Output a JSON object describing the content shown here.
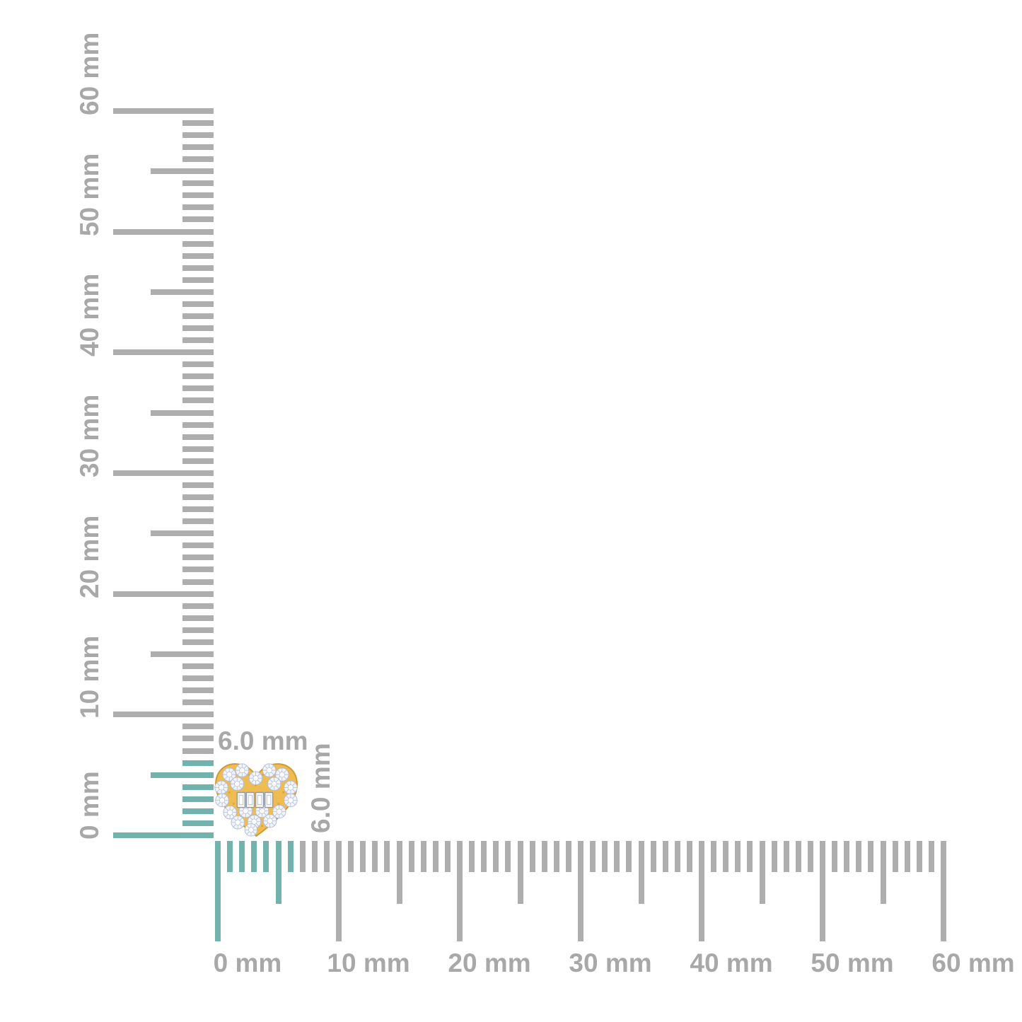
{
  "page": {
    "background": "#ffffff"
  },
  "item": {
    "name": "heart-shaped diamond cluster stud in yellow gold",
    "width_label": "6.0 mm",
    "height_label": "6.0 mm"
  },
  "vertical_ruler": {
    "unit": "mm",
    "min_mm": 0,
    "max_mm": 60,
    "minor_step_mm": 1,
    "medium_step_mm": 5,
    "major_step_mm": 10,
    "labels": [
      "0 mm",
      "10 mm",
      "20 mm",
      "30 mm",
      "40 mm",
      "50 mm",
      "60 mm"
    ],
    "highlight_from_mm": 0,
    "highlight_to_mm": 6
  },
  "horizontal_ruler": {
    "unit": "mm",
    "min_mm": 0,
    "max_mm": 60,
    "minor_step_mm": 1,
    "medium_step_mm": 5,
    "major_step_mm": 10,
    "labels": [
      "0 mm",
      "10 mm",
      "20 mm",
      "30 mm",
      "40 mm",
      "50 mm",
      "60 mm"
    ],
    "highlight_from_mm": 0,
    "highlight_to_mm": 6
  },
  "colors": {
    "tick_gray": "#aeaeae",
    "tick_highlight": "#72b4ad",
    "label_gray": "#a8a8a8",
    "gold": "#eebc51",
    "gold_light": "#f7d88c",
    "gold_dark": "#d19b33",
    "diamond_fill": "#f1f4fa",
    "diamond_facet": "#b4bed6",
    "baguette_stroke": "#8f97a8"
  }
}
